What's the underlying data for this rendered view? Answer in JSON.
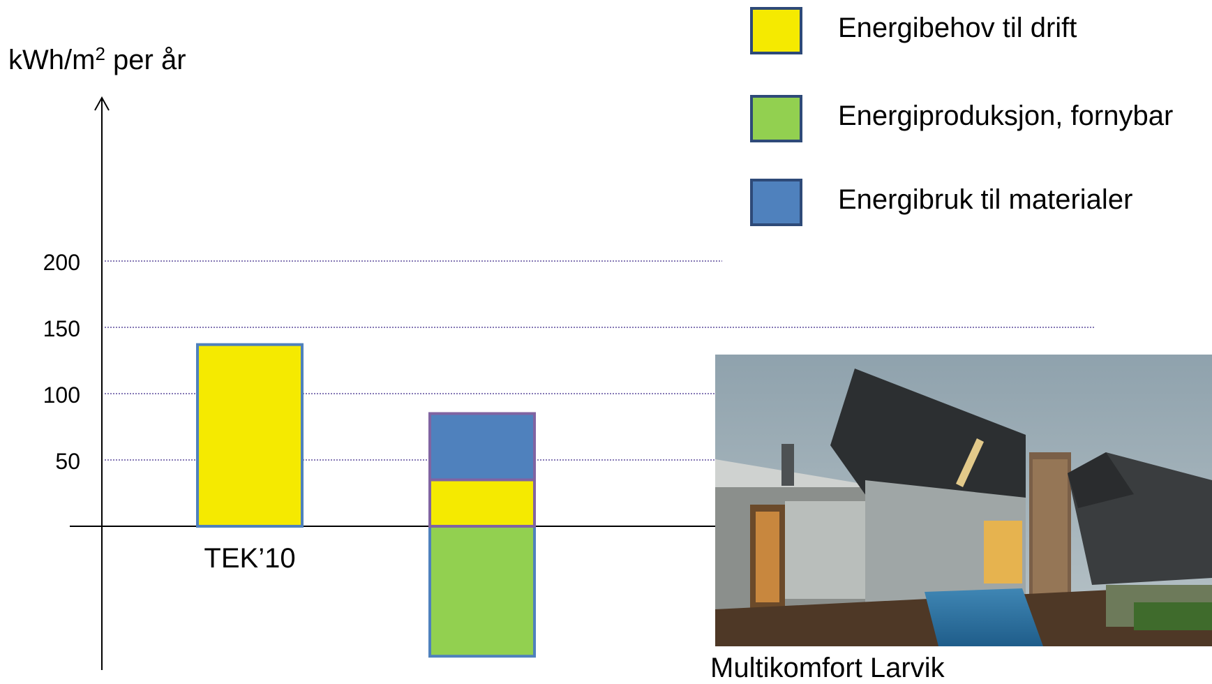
{
  "chart_data": {
    "type": "bar",
    "stacked": true,
    "ylabel": "kWh/m² per år",
    "ylabel_parts": {
      "base": "kWh/m",
      "sup": "2",
      "rest": " per år"
    },
    "yticks": [
      200,
      150,
      100,
      50
    ],
    "grid": "dotted horizontal lines",
    "legend_position": "top-right",
    "categories": [
      "TEK'10",
      ""
    ],
    "category_labels": [
      "TEK’10",
      ""
    ],
    "series": [
      {
        "name": "Energibehov til drift",
        "color": "#f5ea00",
        "values": [
          137,
          35
        ]
      },
      {
        "name": "Energiproduksjon, fornybar",
        "color": "#92d050",
        "values": [
          0,
          -98
        ]
      },
      {
        "name": "Energibruk til materialer",
        "color": "#4f81bd",
        "values": [
          0,
          50
        ]
      }
    ]
  },
  "legend": {
    "items": [
      {
        "label": "Energibehov til drift",
        "color": "#f5ea00"
      },
      {
        "label": "Energiproduksjon, fornybar",
        "color": "#92d050"
      },
      {
        "label": "Energibruk til materialer",
        "color": "#4f81bd"
      }
    ]
  },
  "photo": {
    "caption": "Multikomfort Larvik"
  }
}
